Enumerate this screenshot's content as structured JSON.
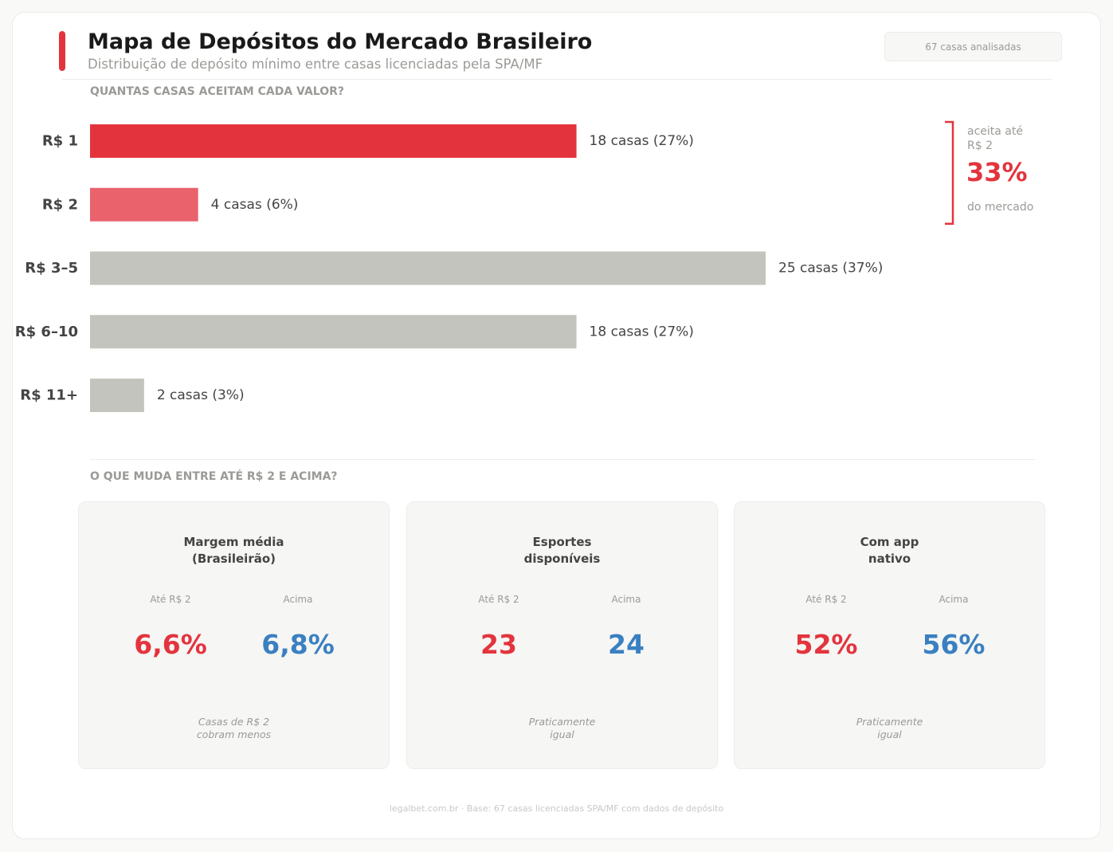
{
  "header": {
    "title": "Mapa de Depósitos do Mercado Brasileiro",
    "subtitle": "Distribuição de depósito mínimo entre casas licenciadas pela SPA/MF",
    "badge": "67 casas analisadas"
  },
  "colors": {
    "accent": "#e3343e",
    "accent_light": "#e9626c",
    "neutral_bar": "#c4c4be",
    "blue": "#3a80c1"
  },
  "sections": {
    "chart_label": "QUANTAS CASAS ACEITAM CADA VALOR?",
    "compare_label": "O QUE MUDA ENTRE ATÉ R$ 2 E ACIMA?"
  },
  "chart_data": {
    "type": "bar",
    "orientation": "horizontal",
    "title": "QUANTAS CASAS ACEITAM CADA VALOR?",
    "categories": [
      "R$ 1",
      "R$ 2",
      "R$ 3–5",
      "R$ 6–10",
      "R$ 11+"
    ],
    "values": [
      18,
      4,
      25,
      18,
      2
    ],
    "percents": [
      27,
      6,
      37,
      27,
      3
    ],
    "value_labels": [
      "18 casas (27%)",
      "4 casas (6%)",
      "25 casas (37%)",
      "18 casas (27%)",
      "2 casas (3%)"
    ],
    "bar_colors": [
      "#e3343e",
      "#e9626c",
      "#c4c4be",
      "#c4c4be",
      "#c4c4be"
    ],
    "xlim": [
      0,
      25
    ],
    "annotation": {
      "top": "aceita até",
      "top2": "R$ 2",
      "value": "33%",
      "bottom": "do mercado",
      "spans_categories": [
        "R$ 1",
        "R$ 2"
      ]
    }
  },
  "comparison": [
    {
      "title": "Margem média\n(Brasileirão)",
      "left_head": "Até R$ 2",
      "left_val": "6,6%",
      "right_head": "Acima",
      "right_val": "6,8%",
      "note": "Casas de R$ 2\ncobram menos"
    },
    {
      "title": "Esportes\ndisponíveis",
      "left_head": "Até R$ 2",
      "left_val": "23",
      "right_head": "Acima",
      "right_val": "24",
      "note": "Praticamente\nigual"
    },
    {
      "title": "Com app\nnativo",
      "left_head": "Até R$ 2",
      "left_val": "52%",
      "right_head": "Acima",
      "right_val": "56%",
      "note": "Praticamente\nigual"
    }
  ],
  "footer": "legalbet.com.br · Base: 67 casas licenciadas SPA/MF com dados de depósito"
}
